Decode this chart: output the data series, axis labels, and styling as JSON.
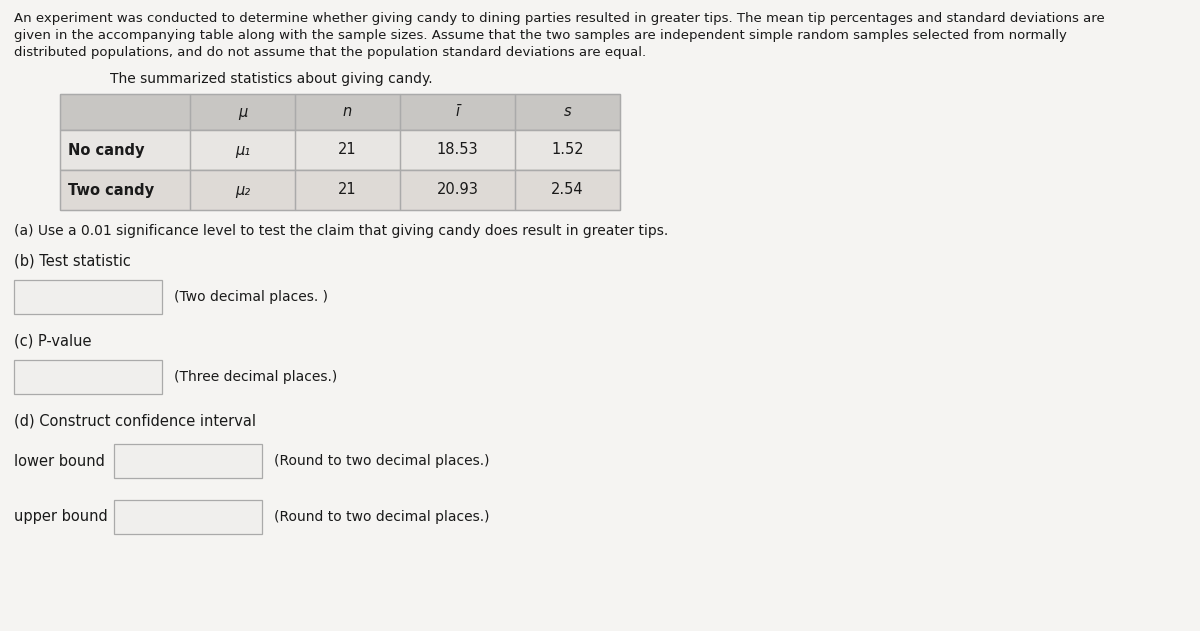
{
  "bg_color": "#f5f4f2",
  "border_color": "#aaaaaa",
  "intro_text_lines": [
    "An experiment was conducted to determine whether giving candy to dining parties resulted in greater tips. The mean tip percentages and standard deviations are",
    "given in the accompanying table along with the sample sizes. Assume that the two samples are independent simple random samples selected from normally",
    "distributed populations, and do not assume that the population standard deviations are equal."
  ],
  "table_title": "The summarized statistics about giving candy.",
  "table_headers": [
    "μ",
    "n",
    "ī",
    "s"
  ],
  "table_rows": [
    [
      "No candy",
      "μ₁",
      "21",
      "18.53",
      "1.52"
    ],
    [
      "Two candy",
      "μ₂",
      "21",
      "20.93",
      "2.54"
    ]
  ],
  "part_a": "(a) Use a 0.01 significance level to test the claim that giving candy does result in greater tips.",
  "part_b_label": "(b) Test statistic",
  "part_b_hint": "(Two decimal places. )",
  "part_c_label": "(c) P-value",
  "part_c_hint": "(Three decimal places.)",
  "part_d_label": "(d) Construct confidence interval",
  "lower_bound_label": "lower bound",
  "lower_bound_hint": "(Round to two decimal places.)",
  "upper_bound_label": "upper bound",
  "upper_bound_hint": "(Round to two decimal places.)",
  "input_box_color": "#f0efed",
  "input_box_border": "#aaaaaa",
  "text_color": "#1a1a1a",
  "font_size_intro": 9.5,
  "font_size_table_header": 10.5,
  "font_size_table_data": 10.5,
  "font_size_labels": 10.5,
  "font_size_hint": 10.0,
  "header_bg": "#c8c6c3",
  "row1_bg": "#e8e6e3",
  "row2_bg": "#dedad6"
}
